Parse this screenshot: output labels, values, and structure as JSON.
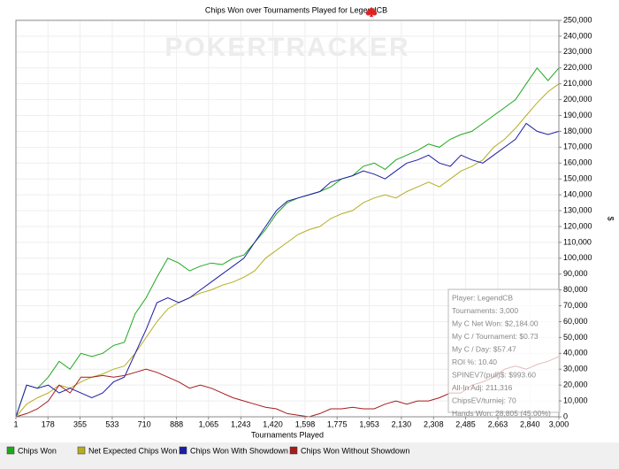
{
  "chart_data": {
    "type": "line",
    "title": "Chips Won over Tournaments Played for LegendCB",
    "watermark": "POKERTRACKER",
    "x_label": "Tournaments Played",
    "y_label": "$",
    "x": [
      1,
      60,
      120,
      180,
      240,
      300,
      360,
      420,
      480,
      540,
      600,
      660,
      720,
      780,
      840,
      900,
      960,
      1020,
      1080,
      1140,
      1200,
      1260,
      1320,
      1380,
      1440,
      1500,
      1560,
      1620,
      1680,
      1740,
      1800,
      1860,
      1920,
      1980,
      2040,
      2100,
      2160,
      2220,
      2280,
      2340,
      2400,
      2460,
      2520,
      2580,
      2640,
      2700,
      2760,
      2820,
      2880,
      2940,
      3000
    ],
    "series": [
      {
        "name": "Chips Won",
        "color": "#1fa81f",
        "values": [
          0,
          20000,
          18000,
          25000,
          35000,
          30000,
          40000,
          38000,
          40000,
          45000,
          47000,
          65000,
          75000,
          88000,
          100000,
          97000,
          92000,
          95000,
          97000,
          96000,
          100000,
          102000,
          110000,
          118000,
          128000,
          135000,
          138000,
          140000,
          142000,
          145000,
          150000,
          152000,
          158000,
          160000,
          156000,
          162000,
          165000,
          168000,
          172000,
          170000,
          175000,
          178000,
          180000,
          185000,
          190000,
          195000,
          200000,
          210000,
          220000,
          212000,
          220000
        ]
      },
      {
        "name": "Net Expected Chips Won",
        "color": "#b5ad22",
        "values": [
          0,
          8000,
          12000,
          15000,
          20000,
          18000,
          22000,
          25000,
          27000,
          30000,
          32000,
          40000,
          50000,
          60000,
          68000,
          72000,
          75000,
          78000,
          80000,
          83000,
          85000,
          88000,
          92000,
          100000,
          105000,
          110000,
          115000,
          118000,
          120000,
          125000,
          128000,
          130000,
          135000,
          138000,
          140000,
          138000,
          142000,
          145000,
          148000,
          145000,
          150000,
          155000,
          158000,
          162000,
          170000,
          175000,
          182000,
          190000,
          198000,
          205000,
          210000
        ]
      },
      {
        "name": "Chips Won With Showdown",
        "color": "#1c1ca6",
        "values": [
          0,
          20000,
          18000,
          20000,
          15000,
          18000,
          15000,
          12000,
          15000,
          22000,
          25000,
          40000,
          55000,
          72000,
          75000,
          72000,
          75000,
          80000,
          85000,
          90000,
          95000,
          100000,
          110000,
          120000,
          130000,
          136000,
          138000,
          140000,
          142000,
          148000,
          150000,
          152000,
          155000,
          153000,
          150000,
          155000,
          160000,
          162000,
          165000,
          160000,
          158000,
          165000,
          162000,
          160000,
          165000,
          170000,
          175000,
          185000,
          180000,
          178000,
          180000
        ]
      },
      {
        "name": "Chips Won Without Showdown",
        "color": "#a61c1c",
        "values": [
          0,
          2000,
          5000,
          10000,
          20000,
          15000,
          25000,
          25000,
          26000,
          25000,
          26000,
          28000,
          30000,
          28000,
          25000,
          22000,
          18000,
          20000,
          18000,
          15000,
          12000,
          10000,
          8000,
          6000,
          5000,
          2000,
          1000,
          0,
          2000,
          5000,
          5000,
          6000,
          5000,
          5000,
          8000,
          10000,
          8000,
          10000,
          10000,
          12000,
          15000,
          15000,
          20000,
          22000,
          25000,
          30000,
          32000,
          30000,
          33000,
          35000,
          38000
        ]
      }
    ],
    "xlim": [
      1,
      3000
    ],
    "xticks": [
      1,
      178,
      355,
      533,
      710,
      888,
      {
        "value": 1065,
        "label": "1,065"
      },
      {
        "value": 1243,
        "label": "1,243"
      },
      {
        "value": 1420,
        "label": "1,420"
      },
      {
        "value": 1598,
        "label": "1,598"
      },
      {
        "value": 1775,
        "label": "1,775"
      },
      {
        "value": 1953,
        "label": "1,953"
      },
      {
        "value": 2130,
        "label": "2,130"
      },
      {
        "value": 2308,
        "label": "2,308"
      },
      {
        "value": 2485,
        "label": "2,485"
      },
      {
        "value": 2663,
        "label": "2,663"
      },
      {
        "value": 2840,
        "label": "2,840"
      },
      {
        "value": 3000,
        "label": "3,000"
      }
    ],
    "ylim": [
      0,
      250000
    ],
    "yticks": [
      0,
      {
        "value": 10000,
        "label": "10,000"
      },
      {
        "value": 20000,
        "label": "20,000"
      },
      {
        "value": 30000,
        "label": "30,000"
      },
      {
        "value": 40000,
        "label": "40,000"
      },
      {
        "value": 50000,
        "label": "50,000"
      },
      {
        "value": 60000,
        "label": "60,000"
      },
      {
        "value": 70000,
        "label": "70,000"
      },
      {
        "value": 80000,
        "label": "80,000"
      },
      {
        "value": 90000,
        "label": "90,000"
      },
      {
        "value": 100000,
        "label": "100,000"
      },
      {
        "value": 110000,
        "label": "110,000"
      },
      {
        "value": 120000,
        "label": "120,000"
      },
      {
        "value": 130000,
        "label": "130,000"
      },
      {
        "value": 140000,
        "label": "140,000"
      },
      {
        "value": 150000,
        "label": "150,000"
      },
      {
        "value": 160000,
        "label": "160,000"
      },
      {
        "value": 170000,
        "label": "170,000"
      },
      {
        "value": 180000,
        "label": "180,000"
      },
      {
        "value": 190000,
        "label": "190,000"
      },
      {
        "value": 200000,
        "label": "200,000"
      },
      {
        "value": 210000,
        "label": "210,000"
      },
      {
        "value": 220000,
        "label": "220,000"
      },
      {
        "value": 230000,
        "label": "230,000"
      },
      {
        "value": 240000,
        "label": "240,000"
      },
      {
        "value": 250000,
        "label": "250,000"
      }
    ],
    "grid": true,
    "legend": "bottom",
    "info_box": [
      "Player: LegendCB",
      "Tournaments: 3,000",
      "My C Net Won: $2,184.00",
      "My C / Tournament: $0.73",
      "My C / Day: $57.47",
      "ROI %: 10.40",
      "SPINEV7(pull)$: $993.60",
      "All-In Adj: 211,316",
      "ChipsEV/turniej: 70",
      "Hands Won: 28,805 (45.00%)"
    ]
  }
}
